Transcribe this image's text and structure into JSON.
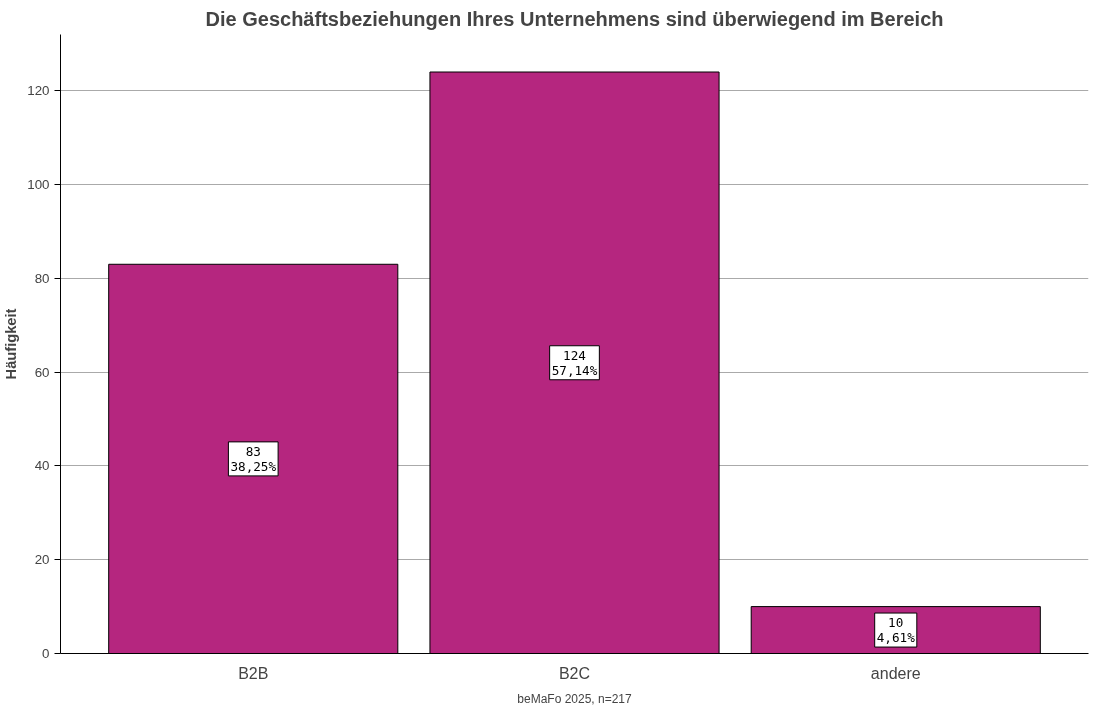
{
  "chart_data": {
    "type": "bar",
    "title": "Die Geschäftsbeziehungen Ihres Unternehmens sind überwiegend im Bereich",
    "ylabel": "Häufigkeit",
    "categories": [
      "B2B",
      "B2C",
      "andere"
    ],
    "values": [
      83,
      124,
      10
    ],
    "color": "#b5267f",
    "value_labels": [
      "83\n38,25%",
      "124\n57,14%",
      "10\n4,61%"
    ],
    "ylim": [
      0,
      132
    ],
    "yticks": [
      0,
      20,
      40,
      60,
      80,
      100,
      120
    ],
    "grid": "y",
    "annotations": [
      "beMaFo 2025, n=217"
    ]
  }
}
